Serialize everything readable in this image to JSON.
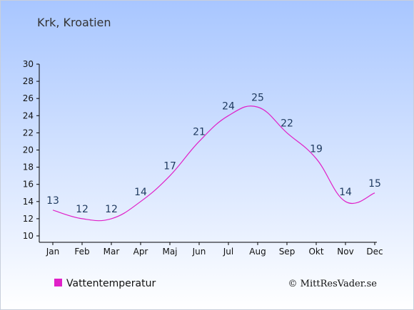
{
  "chart_data": {
    "type": "line",
    "title": "Krk, Kroatien",
    "categories": [
      "Jan",
      "Feb",
      "Mar",
      "Apr",
      "Maj",
      "Jun",
      "Jul",
      "Aug",
      "Sep",
      "Okt",
      "Nov",
      "Dec"
    ],
    "series": [
      {
        "name": "Vattentemperatur",
        "values": [
          13,
          12,
          12,
          14,
          17,
          21,
          24,
          25,
          22,
          19,
          14,
          15
        ],
        "color": "#e020c8"
      }
    ],
    "ylim": [
      10,
      30
    ],
    "yticks": [
      10,
      12,
      14,
      16,
      18,
      20,
      22,
      24,
      26,
      28,
      30
    ],
    "grid": false,
    "legend_position": "bottom-left",
    "credit": "© MittResVader.se",
    "colors": {
      "background_top": "#a8c6ff",
      "background_bottom": "#ffffff",
      "axis": "#000000",
      "data_label": "#1f3a5f"
    }
  }
}
